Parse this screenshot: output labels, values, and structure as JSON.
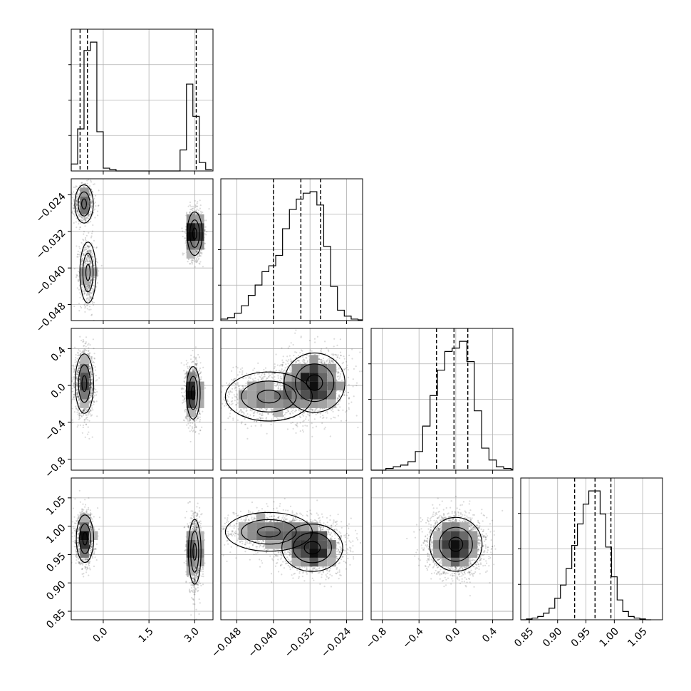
{
  "chart_data": {
    "type": "corner",
    "parameters": [
      {
        "range": [
          -1.05,
          3.6
        ],
        "ticks": [
          0.0,
          1.5,
          3.0
        ],
        "tick_labels": [
          "0.0",
          "1.5",
          "3.0"
        ],
        "hist_bins": [
          -1.05,
          -0.84,
          -0.63,
          -0.42,
          -0.21,
          0.0,
          0.21,
          0.42,
          0.63,
          0.84,
          1.05,
          1.26,
          1.47,
          1.68,
          1.89,
          2.1,
          2.31,
          2.52,
          2.73,
          2.94,
          3.15,
          3.36,
          3.57
        ],
        "hist_counts": [
          0.05,
          0.3,
          0.86,
          0.92,
          0.28,
          0.02,
          0.01,
          0,
          0,
          0,
          0,
          0,
          0,
          0,
          0,
          0,
          0,
          0.15,
          0.62,
          0.39,
          0.06,
          0.01
        ],
        "quantiles": [
          -0.76,
          -0.52,
          3.05
        ]
      },
      {
        "range": [
          -0.0515,
          -0.0205
        ],
        "ticks": [
          -0.048,
          -0.04,
          -0.032,
          -0.024
        ],
        "tick_labels": [
          "−0.048",
          "−0.040",
          "−0.032",
          "−0.024"
        ],
        "hist_bins": [
          -0.0515,
          -0.05,
          -0.0485,
          -0.047,
          -0.0455,
          -0.044,
          -0.0425,
          -0.041,
          -0.0395,
          -0.038,
          -0.0365,
          -0.035,
          -0.0335,
          -0.032,
          -0.0305,
          -0.029,
          -0.0275,
          -0.026,
          -0.0245,
          -0.023,
          -0.0215,
          -0.0205
        ],
        "hist_counts": [
          0.01,
          0.02,
          0.05,
          0.1,
          0.17,
          0.24,
          0.33,
          0.37,
          0.44,
          0.62,
          0.75,
          0.82,
          0.86,
          0.87,
          0.78,
          0.5,
          0.23,
          0.07,
          0.03,
          0.01,
          0.005
        ],
        "quantiles": [
          -0.04,
          -0.034,
          -0.0297
        ]
      },
      {
        "range": [
          -0.92,
          0.62
        ],
        "ticks": [
          -0.8,
          -0.4,
          0.0,
          0.4
        ],
        "tick_labels": [
          "−0.8",
          "−0.4",
          "0.0",
          "0.4"
        ],
        "hist_bins": [
          -0.92,
          -0.84,
          -0.76,
          -0.68,
          -0.6,
          -0.52,
          -0.44,
          -0.36,
          -0.28,
          -0.2,
          -0.12,
          -0.04,
          0.04,
          0.12,
          0.2,
          0.28,
          0.36,
          0.44,
          0.52,
          0.6,
          0.62
        ],
        "hist_counts": [
          0.0,
          0.0,
          0.01,
          0.02,
          0.03,
          0.05,
          0.11,
          0.26,
          0.44,
          0.59,
          0.7,
          0.72,
          0.76,
          0.64,
          0.35,
          0.13,
          0.06,
          0.02,
          0.01,
          0.005
        ],
        "quantiles": [
          -0.21,
          -0.02,
          0.13
        ]
      },
      {
        "range": [
          0.835,
          1.085
        ],
        "ticks": [
          0.85,
          0.9,
          0.95,
          1.0,
          1.05
        ],
        "tick_labels": [
          "0.85",
          "0.90",
          "0.95",
          "1.00",
          "1.05"
        ],
        "hist_bins": [
          0.835,
          0.845,
          0.855,
          0.865,
          0.875,
          0.885,
          0.895,
          0.905,
          0.915,
          0.925,
          0.935,
          0.945,
          0.955,
          0.965,
          0.975,
          0.985,
          0.995,
          1.005,
          1.015,
          1.025,
          1.035,
          1.045,
          1.055,
          1.065
        ],
        "hist_counts": [
          0.0,
          0.005,
          0.01,
          0.02,
          0.04,
          0.07,
          0.13,
          0.21,
          0.31,
          0.45,
          0.58,
          0.7,
          0.78,
          0.78,
          0.64,
          0.44,
          0.26,
          0.12,
          0.05,
          0.02,
          0.01,
          0.005,
          0.0
        ],
        "quantiles": [
          0.93,
          0.966,
          0.994
        ]
      }
    ],
    "pairs": [
      {
        "row": 1,
        "col": 0,
        "clusters": [
          {
            "mean": [
              -0.63,
              -0.026
            ],
            "sd": [
              0.16,
              0.0022
            ],
            "w": 0.25
          },
          {
            "mean": [
              -0.5,
              -0.041
            ],
            "sd": [
              0.14,
              0.0035
            ],
            "w": 0.25
          },
          {
            "mean": [
              3.0,
              -0.0325
            ],
            "sd": [
              0.13,
              0.0025
            ],
            "w": 0.5
          }
        ]
      },
      {
        "row": 2,
        "col": 0,
        "clusters": [
          {
            "mean": [
              -0.62,
              0.02
            ],
            "sd": [
              0.16,
              0.17
            ],
            "w": 0.5
          },
          {
            "mean": [
              2.95,
              -0.08
            ],
            "sd": [
              0.12,
              0.15
            ],
            "w": 0.5
          }
        ]
      },
      {
        "row": 2,
        "col": 1,
        "clusters": [
          {
            "mean": [
              -0.031,
              0.03
            ],
            "sd": [
              0.0035,
              0.17
            ],
            "w": 0.6
          },
          {
            "mean": [
              -0.041,
              -0.12
            ],
            "sd": [
              0.005,
              0.14
            ],
            "w": 0.4
          }
        ]
      },
      {
        "row": 3,
        "col": 0,
        "clusters": [
          {
            "mean": [
              -0.6,
              0.978
            ],
            "sd": [
              0.15,
              0.022
            ],
            "w": 0.5
          },
          {
            "mean": [
              3.0,
              0.955
            ],
            "sd": [
              0.11,
              0.03
            ],
            "w": 0.5
          }
        ]
      },
      {
        "row": 3,
        "col": 1,
        "clusters": [
          {
            "mean": [
              -0.0315,
              0.962
            ],
            "sd": [
              0.0035,
              0.022
            ],
            "w": 0.6
          },
          {
            "mean": [
              -0.041,
              0.99
            ],
            "sd": [
              0.005,
              0.018
            ],
            "w": 0.4
          }
        ]
      },
      {
        "row": 3,
        "col": 2,
        "clusters": [
          {
            "mean": [
              0.0,
              0.968
            ],
            "sd": [
              0.15,
              0.025
            ],
            "w": 1.0
          }
        ]
      }
    ]
  }
}
